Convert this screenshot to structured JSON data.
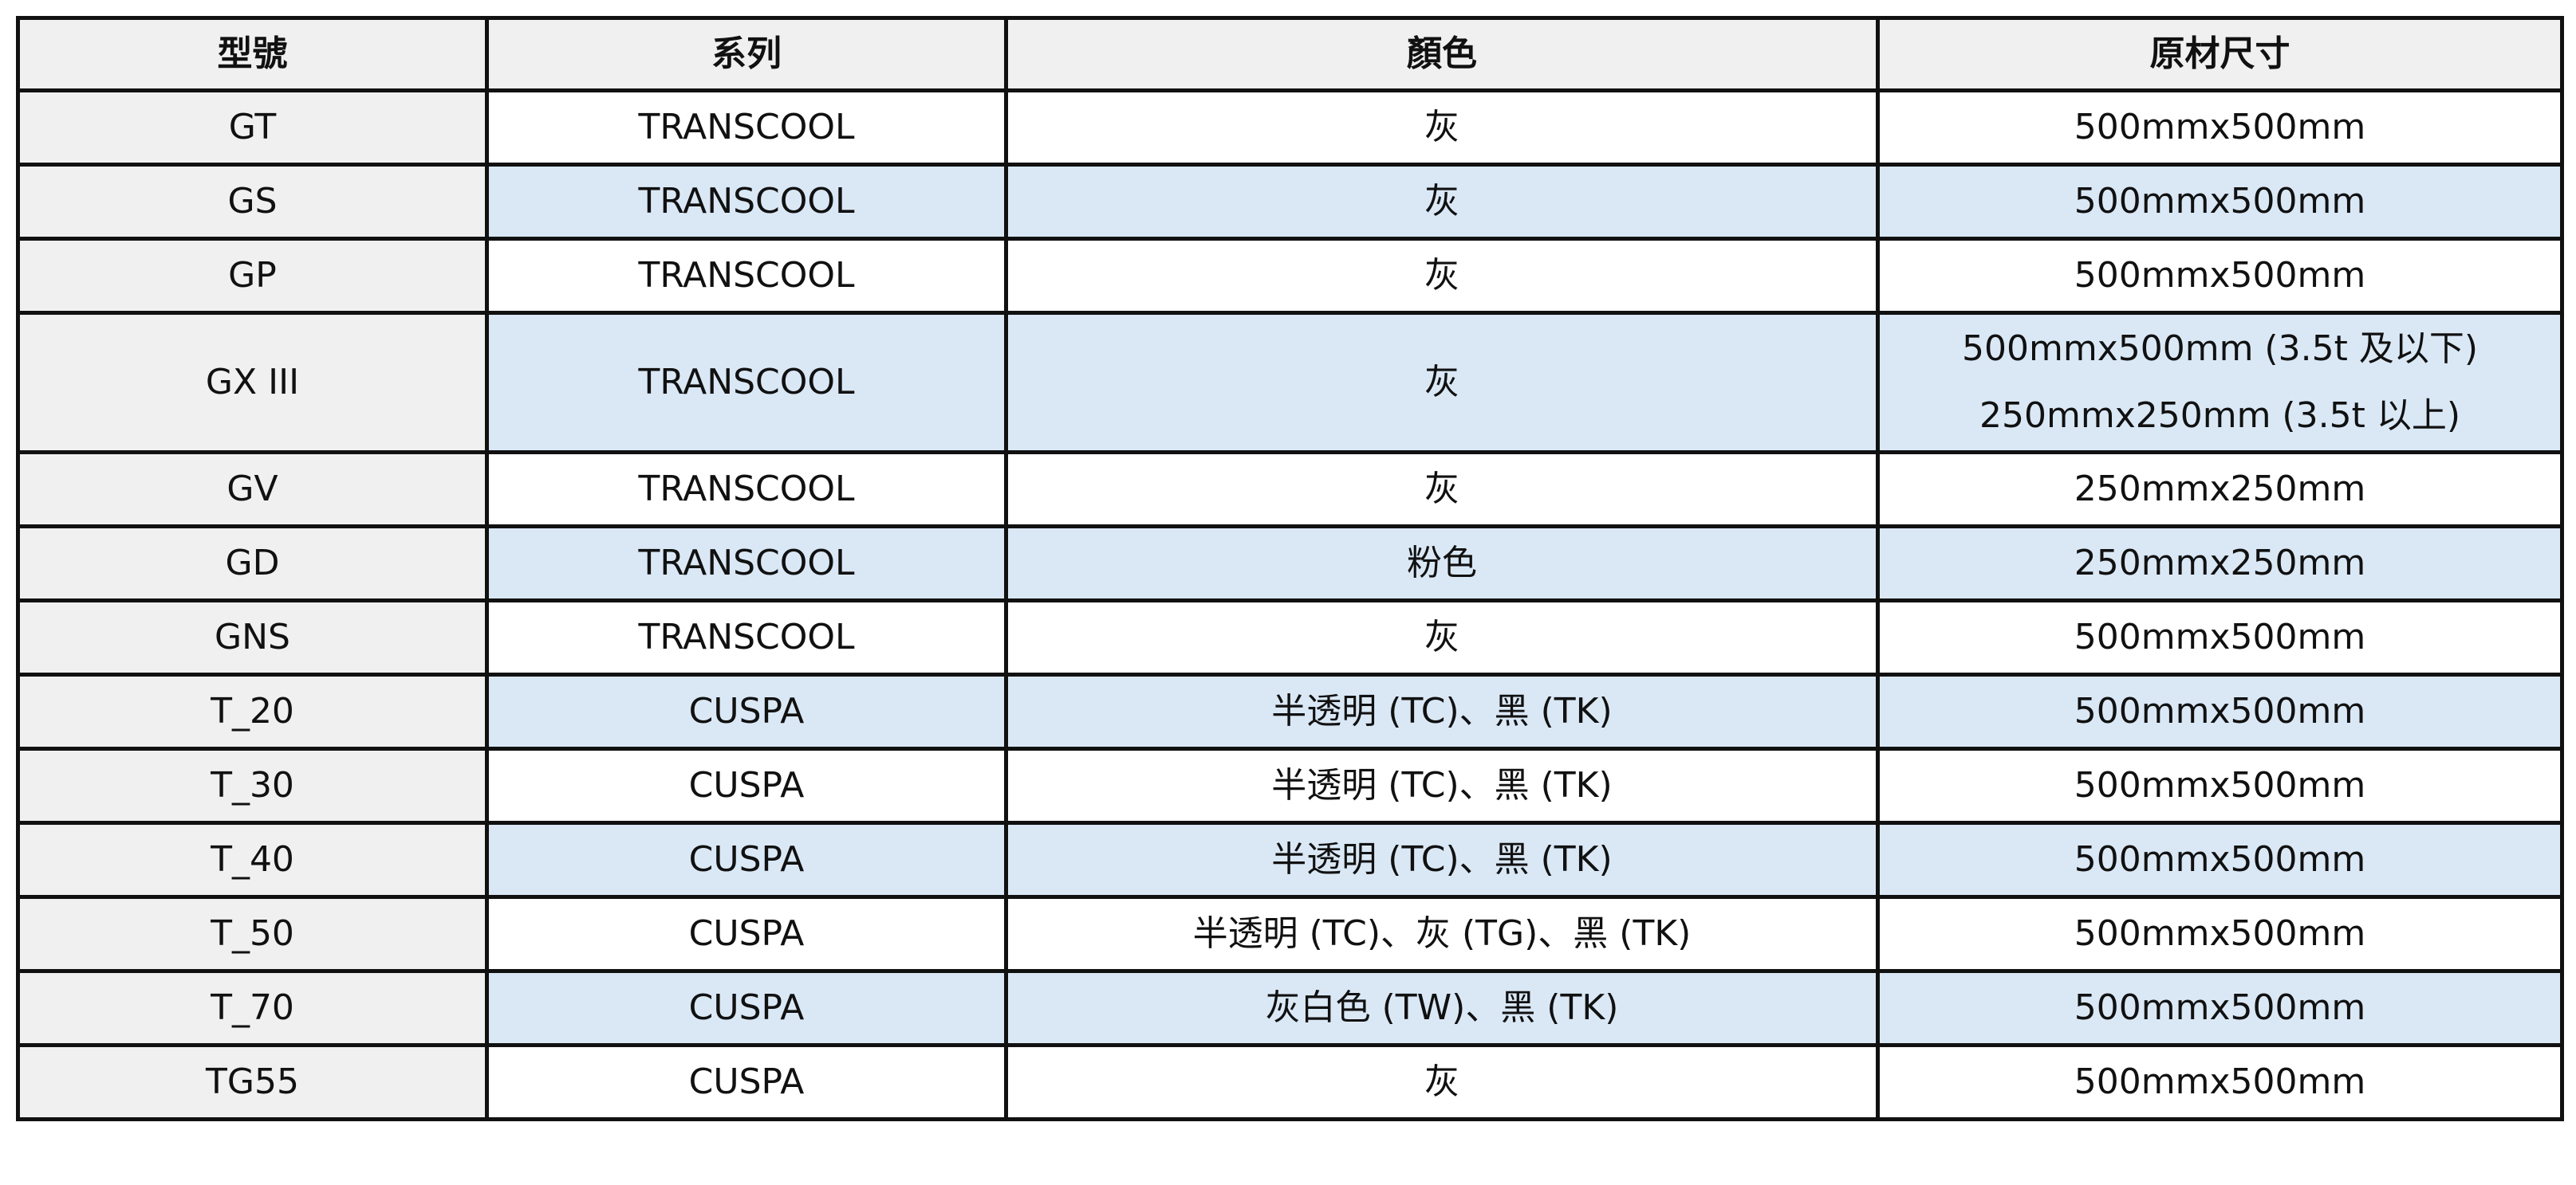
{
  "table": {
    "headers": [
      "型號",
      "系列",
      "顏色",
      "原材尺寸"
    ],
    "rows": [
      {
        "model": "GT",
        "series": "TRANSCOOL",
        "color": "灰",
        "size": [
          "500mmx500mm"
        ]
      },
      {
        "model": "GS",
        "series": "TRANSCOOL",
        "color": "灰",
        "size": [
          "500mmx500mm"
        ]
      },
      {
        "model": "GP",
        "series": "TRANSCOOL",
        "color": "灰",
        "size": [
          "500mmx500mm"
        ]
      },
      {
        "model": "GX III",
        "series": "TRANSCOOL",
        "color": "灰",
        "size": [
          "500mmx500mm (3.5t 及以下)",
          "250mmx250mm (3.5t 以上)"
        ]
      },
      {
        "model": "GV",
        "series": "TRANSCOOL",
        "color": "灰",
        "size": [
          "250mmx250mm"
        ]
      },
      {
        "model": "GD",
        "series": "TRANSCOOL",
        "color": "粉色",
        "size": [
          "250mmx250mm"
        ]
      },
      {
        "model": "GNS",
        "series": "TRANSCOOL",
        "color": "灰",
        "size": [
          "500mmx500mm"
        ]
      },
      {
        "model": "T_20",
        "series": "CUSPA",
        "color": "半透明 (TC)、黑 (TK)",
        "size": [
          "500mmx500mm"
        ]
      },
      {
        "model": "T_30",
        "series": "CUSPA",
        "color": "半透明 (TC)、黑 (TK)",
        "size": [
          "500mmx500mm"
        ]
      },
      {
        "model": "T_40",
        "series": "CUSPA",
        "color": "半透明 (TC)、黑 (TK)",
        "size": [
          "500mmx500mm"
        ]
      },
      {
        "model": "T_50",
        "series": "CUSPA",
        "color": "半透明 (TC)、灰 (TG)、黑 (TK)",
        "size": [
          "500mmx500mm"
        ]
      },
      {
        "model": "T_70",
        "series": "CUSPA",
        "color": "灰白色 (TW)、黑 (TK)",
        "size": [
          "500mmx500mm"
        ]
      },
      {
        "model": "TG55",
        "series": "CUSPA",
        "color": "灰",
        "size": [
          "500mmx500mm"
        ]
      }
    ]
  },
  "colors": {
    "header_bg": "#f0f0f0",
    "stripe_bg": "#dae8f6",
    "border": "#111111"
  }
}
